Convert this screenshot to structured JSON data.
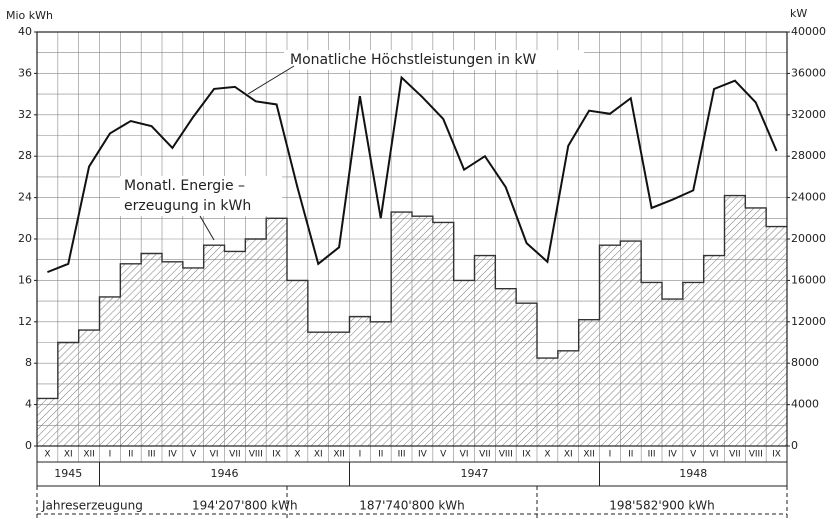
{
  "chart_data": {
    "type": "bar",
    "y_label": "Mio kWh",
    "y2_label": "kW",
    "categories": [
      "X",
      "XI",
      "XII",
      "I",
      "II",
      "III",
      "IV",
      "V",
      "VI",
      "VII",
      "VIII",
      "IX",
      "X",
      "XI",
      "XII",
      "I",
      "II",
      "III",
      "IV",
      "V",
      "VI",
      "VII",
      "VIII",
      "IX",
      "X",
      "XI",
      "XII",
      "I",
      "II",
      "III",
      "IV",
      "V",
      "VI",
      "VII",
      "VIII",
      "IX"
    ],
    "years": [
      "1945",
      "1946",
      "1947",
      "1948"
    ],
    "annual_prefix": "Jahreserzeugung",
    "annual_totals": [
      "194'207'800 kWh",
      "187'740'800 kWh",
      "198'582'900 kWh"
    ],
    "series": [
      {
        "type": "bar",
        "color": "#333333",
        "values": [
          4.6,
          10,
          11.2,
          14.4,
          17.6,
          18.6,
          17.8,
          17.2,
          19.4,
          18.8,
          20,
          22,
          16,
          11,
          11,
          12.5,
          12,
          22.6,
          22.2,
          21.6,
          16,
          18.4,
          15.2,
          13.8,
          8.5,
          9.2,
          12.2,
          19.4,
          19.8,
          15.8,
          14.2,
          15.8,
          18.4,
          24.2,
          23,
          21.2
        ]
      },
      {
        "type": "line",
        "axis": "y2",
        "color": "#111111",
        "values": [
          16800,
          17600,
          27000,
          30200,
          31400,
          30900,
          28800,
          31800,
          34500,
          34700,
          33300,
          33000,
          25000,
          17600,
          19200,
          33800,
          22000,
          35600,
          33700,
          31600,
          26700,
          28000,
          25000,
          19600,
          17800,
          29000,
          32400,
          32100,
          33600,
          23000,
          23800,
          24700,
          34500,
          35300,
          33200,
          28500
        ]
      }
    ],
    "annotations": [
      "Monatliche Höchstleistungen in kW",
      "Monatl. Energie –",
      "erzeugung in kWh"
    ],
    "ylim": [
      0,
      40
    ],
    "yticks": [
      0,
      4,
      8,
      12,
      16,
      20,
      24,
      28,
      32,
      36,
      40
    ],
    "ygrid": [
      0,
      2,
      4,
      6,
      8,
      10,
      12,
      14,
      16,
      18,
      20,
      22,
      24,
      26,
      28,
      30,
      32,
      34,
      36,
      38,
      40
    ],
    "y2lim": [
      0,
      40000
    ],
    "y2ticks": [
      0,
      4000,
      8000,
      12000,
      16000,
      20000,
      24000,
      28000,
      32000,
      36000,
      40000
    ],
    "grid": true
  }
}
